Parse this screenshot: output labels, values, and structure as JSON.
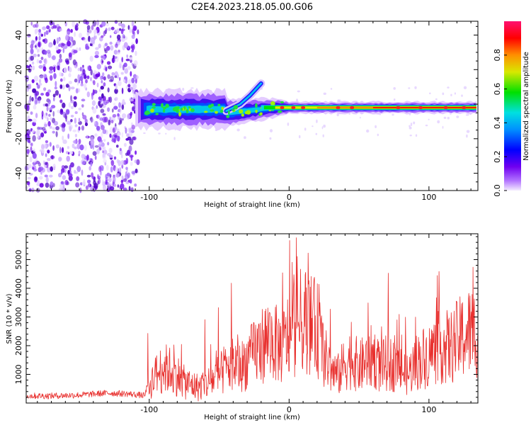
{
  "title": "C2E4.2023.218.05.00.G06",
  "chart_data": [
    {
      "type": "heatmap",
      "xlabel": "Height of straight line (km)",
      "ylabel": "Frequency (Hz)",
      "xlim": [
        -188,
        135
      ],
      "ylim": [
        -50,
        48
      ],
      "x_ticks": [
        -100,
        0,
        100
      ],
      "y_ticks": [
        -40,
        -20,
        0,
        20,
        40
      ],
      "grid": false,
      "colorbar": {
        "label": "Normalized spectral amplitude",
        "range": [
          0,
          1
        ],
        "ticks": [
          "0.0",
          "0.2",
          "0.4",
          "0.6",
          "0.8"
        ],
        "colormap": "rainbow",
        "colors": [
          "#f0e0ff",
          "#7000f0",
          "#0000ff",
          "#00c8ff",
          "#00e000",
          "#e8e800",
          "#ff8000",
          "#ff0000",
          "#ff1060"
        ]
      },
      "features": {
        "noise_region_x": [
          -188,
          -108
        ],
        "signal_line_freq": -2,
        "branch_start_x": -45,
        "branch_end_x": -20,
        "branch_end_freq": 12
      }
    },
    {
      "type": "line",
      "xlabel": "Height of straight line (km)",
      "ylabel": "SNR (10 * v/v)",
      "xlim": [
        -188,
        135
      ],
      "ylim": [
        0,
        5900
      ],
      "x_ticks": [
        -100,
        0,
        100
      ],
      "y_ticks": [
        1000,
        2000,
        3000,
        4000,
        5000
      ],
      "grid": false,
      "color": "#e8302e",
      "series": [
        {
          "x": [
            -188,
            -170,
            -150,
            -130,
            -115,
            -103,
            -99,
            -95,
            -90,
            -85,
            -80,
            -75,
            -70,
            -65,
            -60,
            -55,
            -50,
            -45,
            -40,
            -35,
            -30,
            -25,
            -20,
            -15,
            -10,
            -5,
            0,
            5,
            10,
            15,
            20,
            25,
            30,
            35,
            40,
            45,
            50,
            55,
            60,
            65,
            70,
            75,
            80,
            85,
            90,
            95,
            100,
            105,
            110,
            115,
            120,
            125,
            130,
            135
          ],
          "values": [
            250,
            250,
            280,
            350,
            320,
            260,
            1200,
            1500,
            1800,
            1700,
            1500,
            1200,
            1100,
            1000,
            1100,
            1300,
            1500,
            1700,
            2000,
            1800,
            2100,
            2400,
            2700,
            3000,
            2800,
            2600,
            3200,
            3500,
            3800,
            3600,
            3400,
            2300,
            1700,
            1500,
            2000,
            2200,
            1800,
            2100,
            2300,
            1800,
            2000,
            1900,
            1700,
            1500,
            2000,
            2200,
            2300,
            2600,
            2700,
            2600,
            2900,
            3100,
            3300,
            3200
          ]
        }
      ]
    }
  ]
}
